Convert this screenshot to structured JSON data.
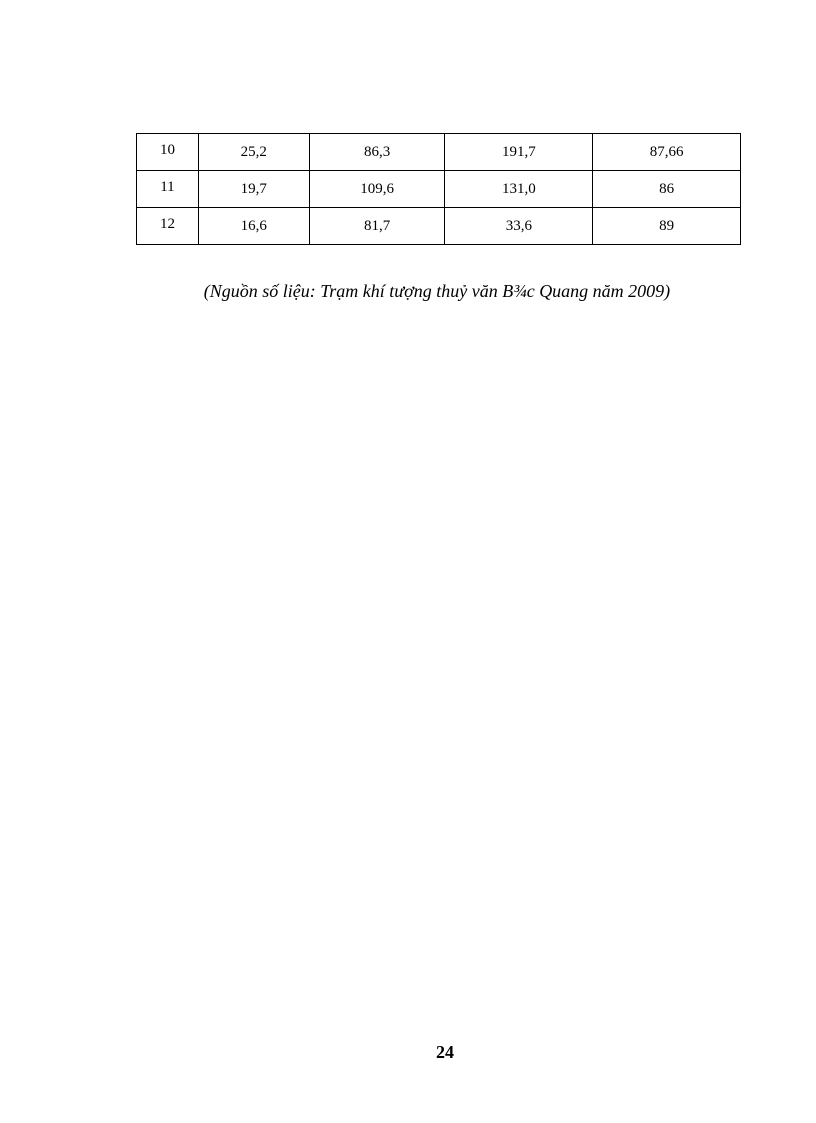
{
  "table": {
    "rows": [
      [
        "10",
        "25,2",
        "86,3",
        "191,7",
        "87,66"
      ],
      [
        "11",
        "19,7",
        "109,6",
        "131,0",
        "86"
      ],
      [
        "12",
        "16,6",
        "81,7",
        "33,6",
        "89"
      ]
    ]
  },
  "caption": "(Nguồn số liệu: Trạm khí tượng thuỷ văn B¾c Quang năm 2009)",
  "page_number": "24"
}
